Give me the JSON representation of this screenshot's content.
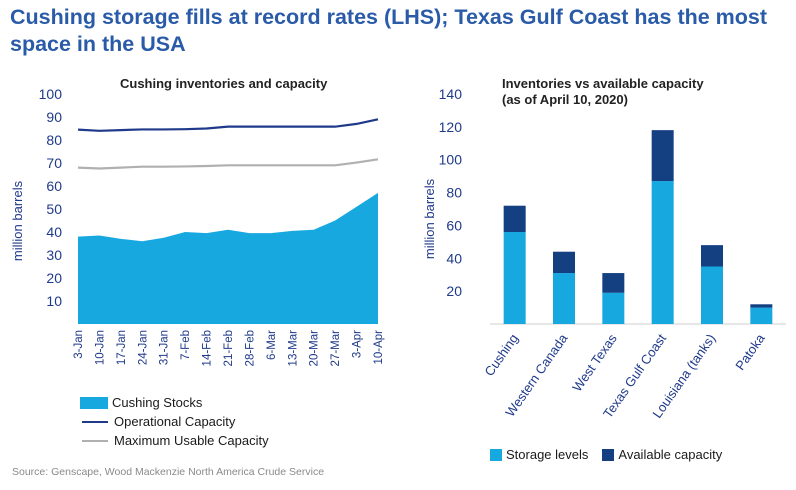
{
  "title": "Cushing storage fills at record rates (LHS); Texas Gulf Coast has the most space in the USA",
  "source": "Source: Genscape, Wood Mackenzie North America Crude Service",
  "colors": {
    "title": "#2a5ba8",
    "stocks": "#17a8e0",
    "operational": "#1f3a8a",
    "usable": "#b0b0b0",
    "storage": "#17a8e0",
    "available": "#143f80"
  },
  "chart_data": [
    {
      "type": "area",
      "title": "Cushing inventories and capacity",
      "ylabel": "million barrels",
      "xlabel": "",
      "ylim": [
        0,
        100
      ],
      "yticks": [
        10,
        20,
        30,
        40,
        50,
        60,
        70,
        80,
        90,
        100
      ],
      "categories": [
        "3-Jan",
        "10-Jan",
        "17-Jan",
        "24-Jan",
        "31-Jan",
        "7-Feb",
        "14-Feb",
        "21-Feb",
        "28-Feb",
        "6-Mar",
        "13-Mar",
        "20-Mar",
        "27-Mar",
        "3-Apr",
        "10-Apr"
      ],
      "series": [
        {
          "name": "Cushing Stocks",
          "style": "area",
          "values": [
            38,
            38.5,
            37,
            36,
            37.5,
            40,
            39.5,
            41,
            39.5,
            39.5,
            40.5,
            41,
            45,
            51,
            57
          ]
        },
        {
          "name": "Operational Capacity",
          "style": "line",
          "values": [
            84.5,
            84,
            84.3,
            84.6,
            84.6,
            84.7,
            85,
            85.8,
            85.8,
            85.8,
            85.8,
            85.8,
            85.8,
            87,
            89
          ]
        },
        {
          "name": "Maximum Usable Capacity",
          "style": "line",
          "values": [
            68,
            67.6,
            68,
            68.4,
            68.4,
            68.5,
            68.7,
            69,
            69,
            69,
            69,
            69,
            69,
            70.2,
            71.6
          ]
        }
      ],
      "legend": [
        "Cushing Stocks",
        "Operational Capacity",
        "Maximum Usable Capacity"
      ]
    },
    {
      "type": "bar",
      "stacked": true,
      "title": "Inventories vs available capacity",
      "subtitle": "(as of April 10, 2020)",
      "ylabel": "million barrels",
      "xlabel": "",
      "ylim": [
        0,
        140
      ],
      "yticks": [
        20,
        40,
        60,
        80,
        100,
        120,
        140
      ],
      "categories": [
        "Cushing",
        "Western Canada",
        "West Texas",
        "Texas Gulf Coast",
        "Louisiana (tanks)",
        "Patoka"
      ],
      "series": [
        {
          "name": "Storage levels",
          "values": [
            56,
            31,
            19,
            87,
            35,
            10
          ]
        },
        {
          "name": "Available capacity",
          "values": [
            16,
            13,
            12,
            31,
            13,
            2
          ]
        }
      ],
      "legend": [
        "Storage levels",
        "Available capacity"
      ]
    }
  ]
}
